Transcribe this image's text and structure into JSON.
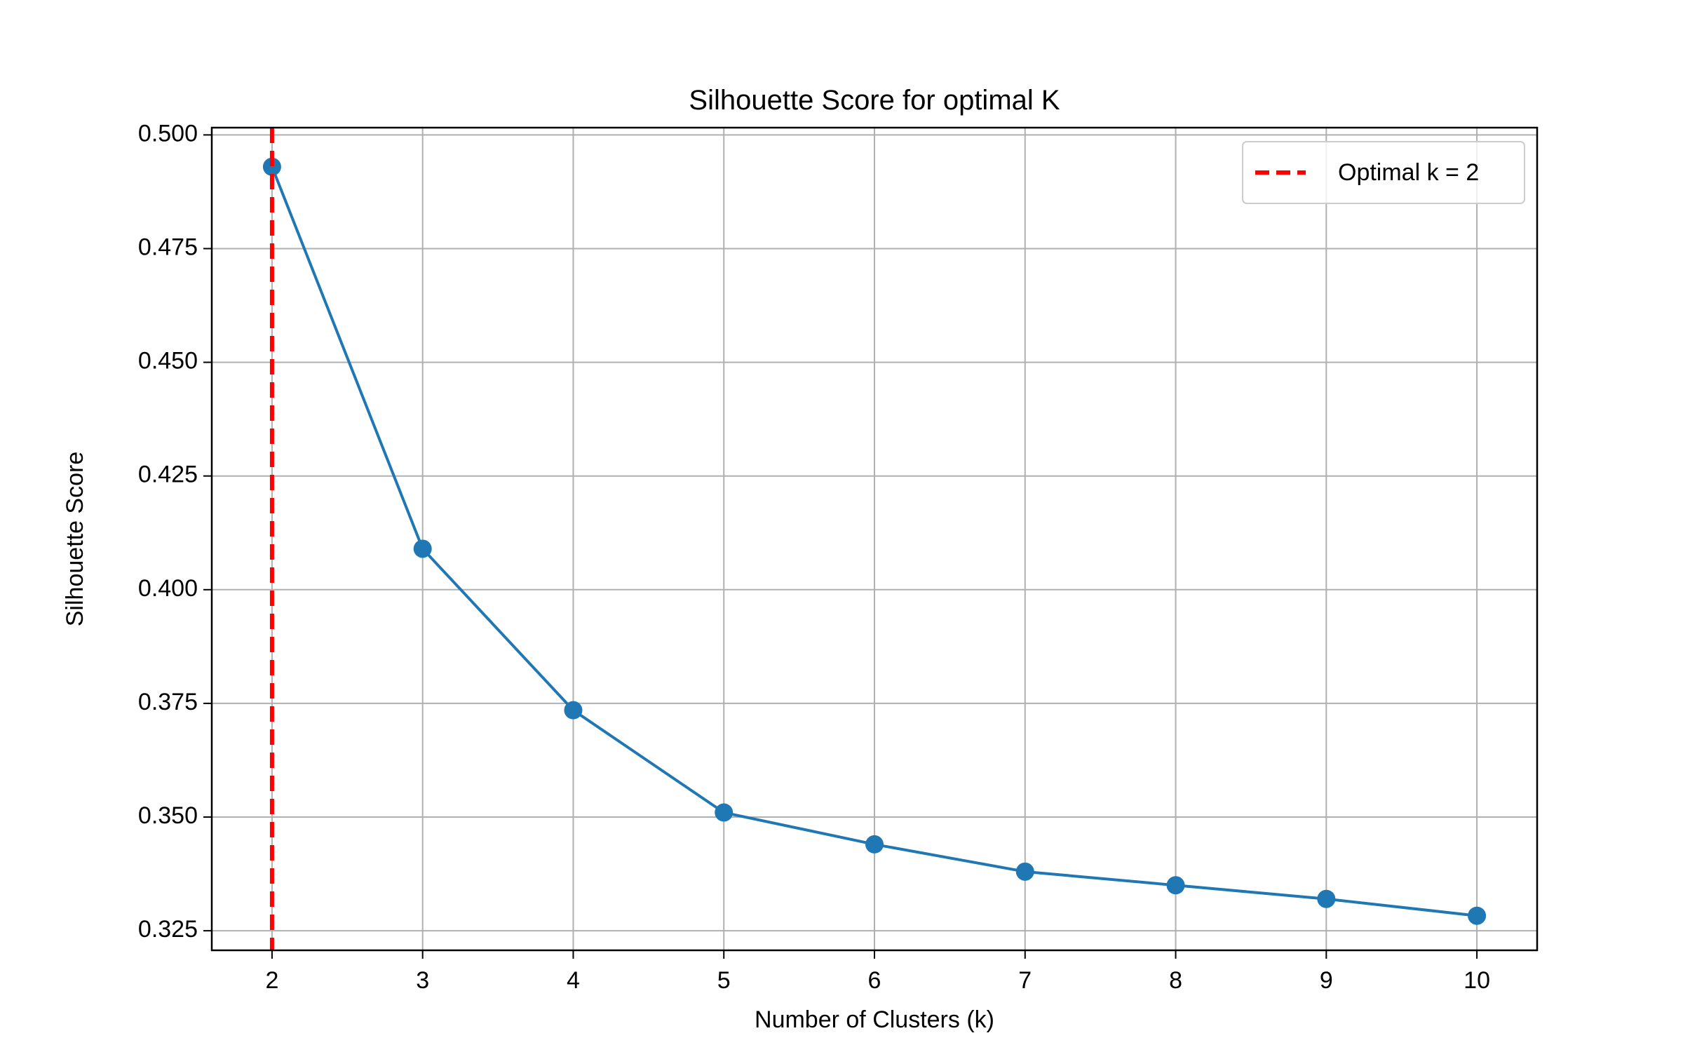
{
  "chart_data": {
    "type": "line",
    "title": "Silhouette Score for optimal K",
    "xlabel": "Number of Clusters (k)",
    "ylabel": "Silhouette Score",
    "x": [
      2,
      3,
      4,
      5,
      6,
      7,
      8,
      9,
      10
    ],
    "xticks": [
      "2",
      "3",
      "4",
      "5",
      "6",
      "7",
      "8",
      "9",
      "10"
    ],
    "yticks": [
      "0.325",
      "0.350",
      "0.375",
      "0.400",
      "0.425",
      "0.450",
      "0.475",
      "0.500"
    ],
    "ytick_values": [
      0.325,
      0.35,
      0.375,
      0.4,
      0.425,
      0.45,
      0.475,
      0.5
    ],
    "xlim": [
      1.6,
      10.4
    ],
    "ylim": [
      0.3207,
      0.5016
    ],
    "grid": true,
    "series": [
      {
        "name": "",
        "values": [
          0.493,
          0.409,
          0.3735,
          0.351,
          0.344,
          0.338,
          0.335,
          0.332,
          0.3283
        ],
        "color": "#1f77b4",
        "marker": "circle"
      }
    ],
    "reference_line": {
      "orientation": "vertical",
      "x": 2,
      "label": "Optimal k = 2",
      "color": "#ff0000",
      "style": "dashed"
    },
    "legend": {
      "position": "top-right",
      "entries": [
        "Optimal k = 2"
      ]
    }
  }
}
